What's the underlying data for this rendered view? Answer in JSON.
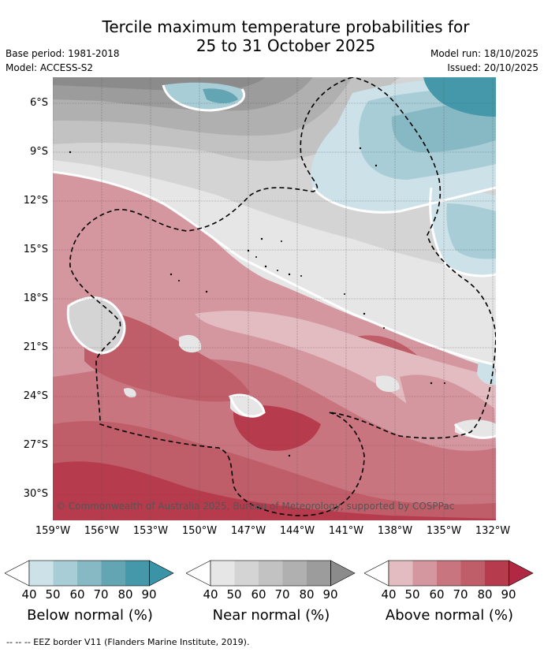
{
  "title_line1": "Tercile maximum temperature probabilities for",
  "title_line2": "25 to 31 October 2025",
  "base_period": "Base period: 1981-2018",
  "model": "Model: ACCESS-S2",
  "model_run": "Model run: 18/10/2025",
  "issued": "Issued: 20/10/2025",
  "copyright": "© Commonwealth of Australia 2025, Bureau of Meteorology, supported by COSPPac",
  "lat_ticks": [
    "6°S",
    "9°S",
    "12°S",
    "15°S",
    "18°S",
    "21°S",
    "24°S",
    "27°S",
    "30°S"
  ],
  "lon_ticks": [
    "159°W",
    "156°W",
    "153°W",
    "150°W",
    "147°W",
    "144°W",
    "141°W",
    "138°W",
    "135°W",
    "132°W"
  ],
  "colorbars": [
    {
      "title": "Below normal (%)",
      "ticks": [
        "40",
        "50",
        "60",
        "70",
        "80",
        "90"
      ],
      "colors": [
        "#cde2e8",
        "#a9cdd6",
        "#87b9c5",
        "#64a5b4",
        "#4498a9",
        "#3a93a6"
      ]
    },
    {
      "title": "Near normal (%)",
      "ticks": [
        "40",
        "50",
        "60",
        "70",
        "80",
        "90"
      ],
      "colors": [
        "#e6e6e6",
        "#d4d4d4",
        "#c2c2c2",
        "#b0b0b0",
        "#9c9c9c",
        "#8b8b8b"
      ]
    },
    {
      "title": "Above normal (%)",
      "ticks": [
        "40",
        "50",
        "60",
        "70",
        "80",
        "90"
      ],
      "colors": [
        "#e2bcc1",
        "#d4979f",
        "#c97580",
        "#bf5d68",
        "#b53b4d",
        "#b02843"
      ]
    }
  ],
  "legend_note": "--  --  -- EEZ border V11 (Flanders Marine Institute, 2019)."
}
